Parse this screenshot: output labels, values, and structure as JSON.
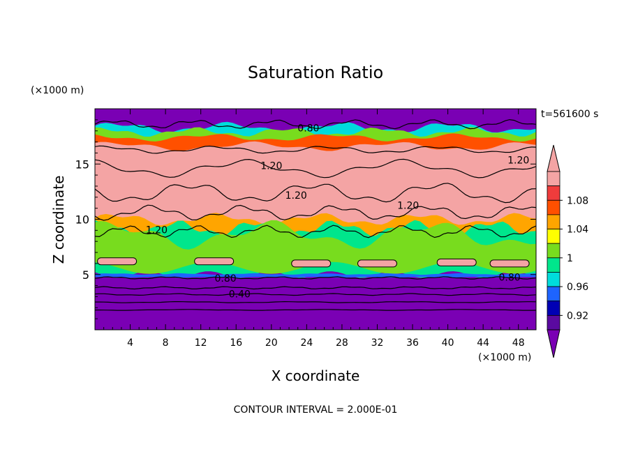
{
  "chart_data": {
    "type": "heatmap",
    "title": "Saturation Ratio",
    "xlabel": "X coordinate",
    "ylabel": "Z coordinate",
    "x_unit": "(×1000 m)",
    "y_unit": "(×1000 m)",
    "time_label": "t=561600 s",
    "footer": "CONTOUR INTERVAL = 2.000E-01",
    "xlim": [
      0,
      50
    ],
    "ylim": [
      0,
      20
    ],
    "x_ticks": [
      4,
      8,
      12,
      16,
      20,
      24,
      28,
      32,
      36,
      40,
      44,
      48
    ],
    "y_ticks": [
      5,
      10,
      15
    ],
    "colorbar": {
      "levels": [
        0.92,
        0.96,
        1,
        1.04,
        1.08
      ],
      "tick_labels": [
        "0.92",
        "0.96",
        "1",
        "1.04",
        "1.08"
      ],
      "colors": [
        "#5a0aa0",
        "#0000b4",
        "#1e64ff",
        "#00dcdc",
        "#00e68c",
        "#78dc1e",
        "#ffff00",
        "#ffa500",
        "#ff5000",
        "#f03c3c",
        "#f4a4a4"
      ],
      "below_color": "#7a00b4",
      "above_color": "#f4a4a4"
    },
    "regions": [
      {
        "z_from": 0,
        "z_to": 4.8,
        "value": "<0.92"
      },
      {
        "z_from": 4.8,
        "z_to": 5.0,
        "value": "0.92-1.00"
      },
      {
        "z_from": 5.0,
        "z_to": 9.0,
        "value": "0.96-1.04"
      },
      {
        "z_from": 9.0,
        "z_to": 16.0,
        "value": ">1.08"
      },
      {
        "z_from": 16.0,
        "z_to": 18.5,
        "value": "0.92-1.08"
      },
      {
        "z_from": 18.5,
        "z_to": 20,
        "value": "<0.92"
      }
    ],
    "contour_labels": [
      {
        "text": "0.80",
        "x": 24.2,
        "z": 18.2
      },
      {
        "text": "1.20",
        "x": 20.0,
        "z": 14.8
      },
      {
        "text": "1.20",
        "x": 48.0,
        "z": 15.3
      },
      {
        "text": "1.20",
        "x": 22.8,
        "z": 12.1
      },
      {
        "text": "1.20",
        "x": 35.5,
        "z": 11.2
      },
      {
        "text": "1.20",
        "x": 7.0,
        "z": 9.0
      },
      {
        "text": "0.80",
        "x": 14.8,
        "z": 4.6
      },
      {
        "text": "0.80",
        "x": 47.0,
        "z": 4.7
      },
      {
        "text": "0.40",
        "x": 16.4,
        "z": 3.2
      }
    ]
  }
}
